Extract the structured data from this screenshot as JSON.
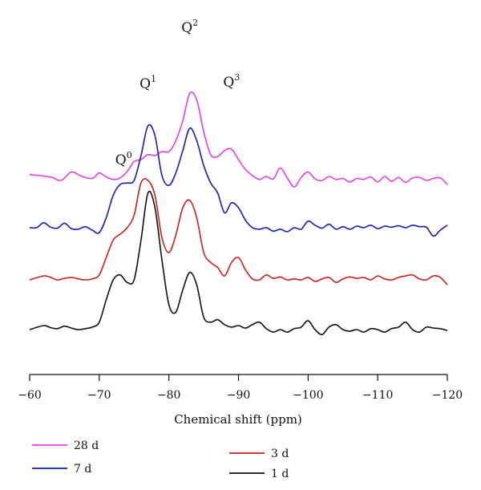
{
  "chart_data": {
    "type": "line",
    "xlabel": "Chemical shift (ppm)",
    "ylabel": "",
    "xlim": [
      -60,
      -120
    ],
    "xticks": [
      -60,
      -70,
      -80,
      -90,
      -100,
      -110,
      -120
    ],
    "xtick_labels": [
      "−60",
      "−70",
      "−80",
      "−90",
      "−100",
      "−110",
      "−120"
    ],
    "grid": false,
    "legend_position": "bottom",
    "annotations": [
      {
        "label": "Q",
        "sup": "0",
        "x": -73.5
      },
      {
        "label": "Q",
        "sup": "1",
        "x": -77
      },
      {
        "label": "Q",
        "sup": "2",
        "x": -83
      },
      {
        "label": "Q",
        "sup": "3",
        "x": -89
      }
    ],
    "series": [
      {
        "name": "28 d",
        "color": "#e83ee8",
        "offset": 3.0,
        "points": [
          [
            -60,
            0.12
          ],
          [
            -63,
            0.07
          ],
          [
            -64.5,
            0.0
          ],
          [
            -66,
            0.17
          ],
          [
            -67.5,
            0.08
          ],
          [
            -69,
            0.04
          ],
          [
            -70,
            0.15
          ],
          [
            -71,
            0.07
          ],
          [
            -72,
            0.02
          ],
          [
            -73,
            0.05
          ],
          [
            -74,
            0.18
          ],
          [
            -75,
            0.38
          ],
          [
            -76,
            0.42
          ],
          [
            -77,
            0.52
          ],
          [
            -78,
            0.5
          ],
          [
            -79,
            0.58
          ],
          [
            -80,
            0.58
          ],
          [
            -81,
            0.8
          ],
          [
            -82,
            1.2
          ],
          [
            -83,
            1.75
          ],
          [
            -84,
            1.62
          ],
          [
            -85,
            0.98
          ],
          [
            -86,
            0.52
          ],
          [
            -87,
            0.48
          ],
          [
            -88,
            0.6
          ],
          [
            -89,
            0.63
          ],
          [
            -90,
            0.42
          ],
          [
            -91,
            0.22
          ],
          [
            -92,
            0.1
          ],
          [
            -93,
            0.02
          ],
          [
            -94,
            0.08
          ],
          [
            -95,
            0.03
          ],
          [
            -96,
            0.25
          ],
          [
            -97,
            0.05
          ],
          [
            -98,
            -0.13
          ],
          [
            -99,
            0.06
          ],
          [
            -100,
            0.17
          ],
          [
            -101,
            0.03
          ],
          [
            -102,
            0.0
          ],
          [
            -103,
            0.08
          ],
          [
            -104,
            0.02
          ],
          [
            -105,
            0.04
          ],
          [
            -106,
            -0.03
          ],
          [
            -107,
            0.04
          ],
          [
            -108,
            0.02
          ],
          [
            -109,
            0.07
          ],
          [
            -110,
            -0.03
          ],
          [
            -111,
            0.08
          ],
          [
            -112,
            -0.02
          ],
          [
            -113,
            0.06
          ],
          [
            -114,
            -0.04
          ],
          [
            -115,
            0.05
          ],
          [
            -116,
            0.06
          ],
          [
            -117,
            0.0
          ],
          [
            -118,
            0.04
          ],
          [
            -119,
            0.05
          ],
          [
            -120,
            -0.08
          ]
        ]
      },
      {
        "name": "7 d",
        "color": "#1a1ab8",
        "offset": 2.0,
        "points": [
          [
            -60,
            0.05
          ],
          [
            -61,
            0.05
          ],
          [
            -62,
            0.15
          ],
          [
            -63,
            0.06
          ],
          [
            -64,
            0.04
          ],
          [
            -65,
            0.14
          ],
          [
            -66,
            0.03
          ],
          [
            -67,
            0.02
          ],
          [
            -68,
            0.07
          ],
          [
            -69,
            0.0
          ],
          [
            -70,
            -0.05
          ],
          [
            -71,
            0.25
          ],
          [
            -72,
            0.7
          ],
          [
            -73,
            0.92
          ],
          [
            -74,
            0.95
          ],
          [
            -75,
            1.0
          ],
          [
            -76,
            1.5
          ],
          [
            -77,
            2.1
          ],
          [
            -78,
            1.9
          ],
          [
            -79,
            1.1
          ],
          [
            -80,
            0.9
          ],
          [
            -81,
            1.15
          ],
          [
            -82,
            1.6
          ],
          [
            -83,
            2.05
          ],
          [
            -84,
            1.8
          ],
          [
            -85,
            1.3
          ],
          [
            -86,
            0.95
          ],
          [
            -87,
            0.75
          ],
          [
            -88,
            0.35
          ],
          [
            -89,
            0.55
          ],
          [
            -90,
            0.45
          ],
          [
            -91,
            0.2
          ],
          [
            -92,
            0.05
          ],
          [
            -93,
            0.02
          ],
          [
            -94,
            0.05
          ],
          [
            -95,
            -0.02
          ],
          [
            -96,
            0.02
          ],
          [
            -97,
            -0.03
          ],
          [
            -98,
            0.05
          ],
          [
            -99,
            0.02
          ],
          [
            -100,
            0.18
          ],
          [
            -101,
            0.1
          ],
          [
            -102,
            0.04
          ],
          [
            -103,
            0.12
          ],
          [
            -104,
            0.02
          ],
          [
            -105,
            0.07
          ],
          [
            -106,
            0.02
          ],
          [
            -107,
            0.08
          ],
          [
            -108,
            0.05
          ],
          [
            -109,
            0.1
          ],
          [
            -110,
            0.03
          ],
          [
            -111,
            0.08
          ],
          [
            -112,
            0.06
          ],
          [
            -113,
            0.09
          ],
          [
            -114,
            0.05
          ],
          [
            -115,
            0.1
          ],
          [
            -116,
            0.07
          ],
          [
            -117,
            0.06
          ],
          [
            -118,
            -0.12
          ],
          [
            -119,
            0.0
          ],
          [
            -120,
            0.1
          ]
        ]
      },
      {
        "name": "3 d",
        "color": "#cc1f1f",
        "offset": 1.0,
        "points": [
          [
            -60,
            0.0
          ],
          [
            -62,
            0.08
          ],
          [
            -63,
            0.05
          ],
          [
            -64,
            0.0
          ],
          [
            -65,
            0.03
          ],
          [
            -66,
            0.05
          ],
          [
            -67,
            0.02
          ],
          [
            -68,
            0.0
          ],
          [
            -69,
            0.02
          ],
          [
            -70,
            0.1
          ],
          [
            -71,
            0.45
          ],
          [
            -72,
            0.8
          ],
          [
            -73,
            0.92
          ],
          [
            -74,
            1.05
          ],
          [
            -75,
            1.3
          ],
          [
            -76,
            1.95
          ],
          [
            -77,
            2.0
          ],
          [
            -78,
            1.7
          ],
          [
            -79,
            0.85
          ],
          [
            -80,
            0.55
          ],
          [
            -81,
            0.9
          ],
          [
            -82,
            1.45
          ],
          [
            -83,
            1.6
          ],
          [
            -84,
            1.25
          ],
          [
            -85,
            0.55
          ],
          [
            -86,
            0.35
          ],
          [
            -87,
            0.25
          ],
          [
            -88,
            0.08
          ],
          [
            -89,
            0.35
          ],
          [
            -90,
            0.45
          ],
          [
            -91,
            0.2
          ],
          [
            -92,
            0.02
          ],
          [
            -93,
            0.0
          ],
          [
            -94,
            0.1
          ],
          [
            -95,
            0.03
          ],
          [
            -96,
            0.06
          ],
          [
            -97,
            0.0
          ],
          [
            -98,
            0.02
          ],
          [
            -99,
            0.0
          ],
          [
            -100,
            0.05
          ],
          [
            -101,
            -0.03
          ],
          [
            -102,
            0.02
          ],
          [
            -103,
            0.05
          ],
          [
            -104,
            -0.05
          ],
          [
            -105,
            0.02
          ],
          [
            -106,
            0.06
          ],
          [
            -107,
            0.03
          ],
          [
            -108,
            0.05
          ],
          [
            -109,
            0.0
          ],
          [
            -110,
            0.08
          ],
          [
            -111,
            0.02
          ],
          [
            -112,
            0.0
          ],
          [
            -113,
            0.05
          ],
          [
            -114,
            0.08
          ],
          [
            -115,
            0.1
          ],
          [
            -116,
            0.02
          ],
          [
            -117,
            0.0
          ],
          [
            -118,
            0.08
          ],
          [
            -119,
            0.05
          ],
          [
            -120,
            -0.1
          ]
        ]
      },
      {
        "name": "1 d",
        "color": "#111111",
        "offset": 0.0,
        "points": [
          [
            -60,
            0.0
          ],
          [
            -62,
            0.08
          ],
          [
            -63,
            0.04
          ],
          [
            -64,
            0.02
          ],
          [
            -65,
            0.07
          ],
          [
            -66,
            0.03
          ],
          [
            -67,
            0.0
          ],
          [
            -68,
            0.02
          ],
          [
            -69,
            0.05
          ],
          [
            -70,
            0.15
          ],
          [
            -71,
            0.6
          ],
          [
            -72,
            1.0
          ],
          [
            -73,
            1.1
          ],
          [
            -74,
            0.95
          ],
          [
            -75,
            1.0
          ],
          [
            -76,
            1.8
          ],
          [
            -77,
            2.75
          ],
          [
            -78,
            2.45
          ],
          [
            -79,
            1.4
          ],
          [
            -80,
            0.5
          ],
          [
            -81,
            0.35
          ],
          [
            -82,
            0.8
          ],
          [
            -83,
            1.15
          ],
          [
            -84,
            0.9
          ],
          [
            -85,
            0.25
          ],
          [
            -86,
            0.15
          ],
          [
            -87,
            0.2
          ],
          [
            -88,
            0.1
          ],
          [
            -89,
            0.05
          ],
          [
            -90,
            0.08
          ],
          [
            -91,
            0.03
          ],
          [
            -92,
            0.1
          ],
          [
            -93,
            0.15
          ],
          [
            -94,
            0.02
          ],
          [
            -95,
            -0.05
          ],
          [
            -96,
            0.0
          ],
          [
            -97,
            -0.05
          ],
          [
            -98,
            0.02
          ],
          [
            -99,
            0.05
          ],
          [
            -100,
            0.18
          ],
          [
            -101,
            0.0
          ],
          [
            -102,
            -0.1
          ],
          [
            -103,
            0.05
          ],
          [
            -104,
            0.1
          ],
          [
            -105,
            0.0
          ],
          [
            -106,
            -0.03
          ],
          [
            -107,
            0.0
          ],
          [
            -108,
            -0.05
          ],
          [
            -109,
            0.02
          ],
          [
            -110,
            0.0
          ],
          [
            -111,
            -0.05
          ],
          [
            -112,
            0.02
          ],
          [
            -113,
            0.05
          ],
          [
            -114,
            0.15
          ],
          [
            -115,
            0.0
          ],
          [
            -116,
            -0.05
          ],
          [
            -117,
            0.05
          ],
          [
            -118,
            0.03
          ],
          [
            -119,
            0.02
          ],
          [
            -120,
            -0.02
          ]
        ]
      }
    ]
  },
  "legend": [
    {
      "name": "28 d",
      "color": "#e83ee8"
    },
    {
      "name": "7 d",
      "color": "#1a1ab8"
    },
    {
      "name": "3 d",
      "color": "#cc1f1f"
    },
    {
      "name": "1 d",
      "color": "#111111"
    }
  ]
}
